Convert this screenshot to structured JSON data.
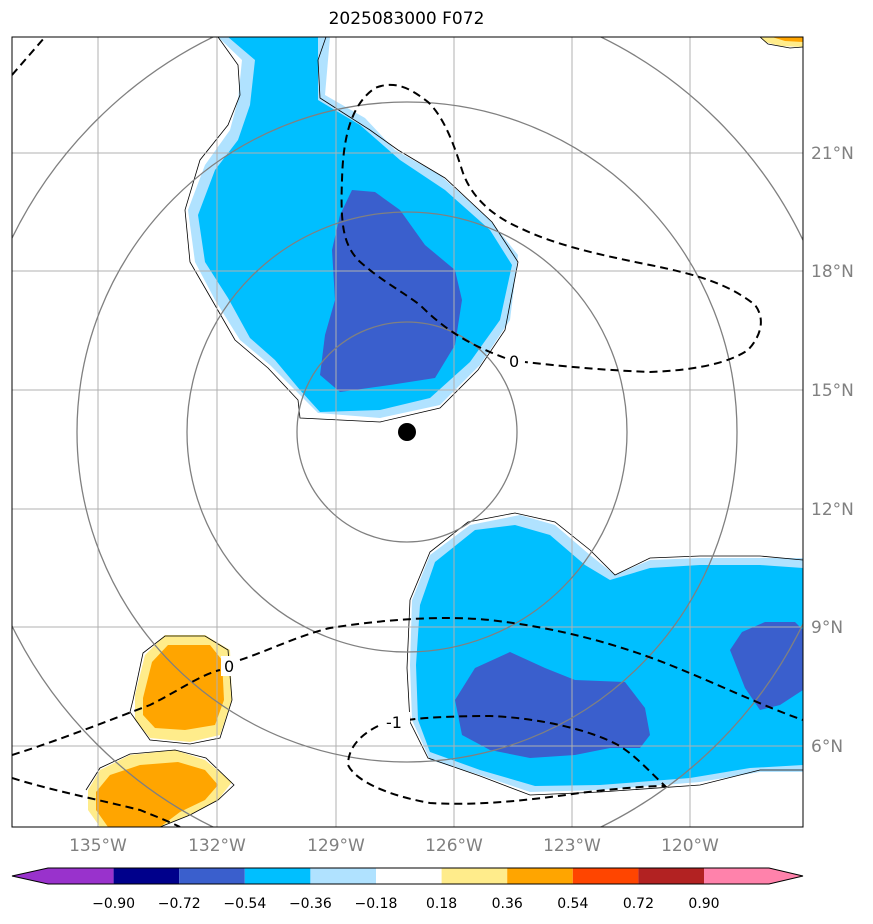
{
  "title": "2025083000 F072",
  "map": {
    "lat_labels": [
      "21°N",
      "18°N",
      "15°N",
      "12°N",
      "9°N",
      "6°N"
    ],
    "lon_labels": [
      "135°W",
      "132°W",
      "129°W",
      "126°W",
      "123°W",
      "120°W"
    ],
    "center_marker": {
      "lat": 14.0,
      "lon": -127.2
    },
    "range_rings": 4,
    "contour_labels": [
      "0",
      "0",
      "-1"
    ]
  },
  "colorbar": {
    "ticks": [
      "−0.90",
      "−0.72",
      "−0.54",
      "−0.36",
      "−0.18",
      "0.18",
      "0.36",
      "0.54",
      "0.72",
      "0.90"
    ],
    "colors": [
      "#9932cc",
      "#00008b",
      "#3a5fcd",
      "#00bfff",
      "#b0e2ff",
      "#ffffff",
      "#ffec8b",
      "#ffa500",
      "#ff4500",
      "#b22222",
      "#ff82ab"
    ]
  },
  "colors": {
    "neg_strong": "#3a5fcd",
    "neg_mid": "#00bfff",
    "neg_weak": "#b0e2ff",
    "pos_weak": "#ffec8b",
    "pos_mid": "#ffa500",
    "grid": "#b0b0b0",
    "ring": "#808080"
  }
}
